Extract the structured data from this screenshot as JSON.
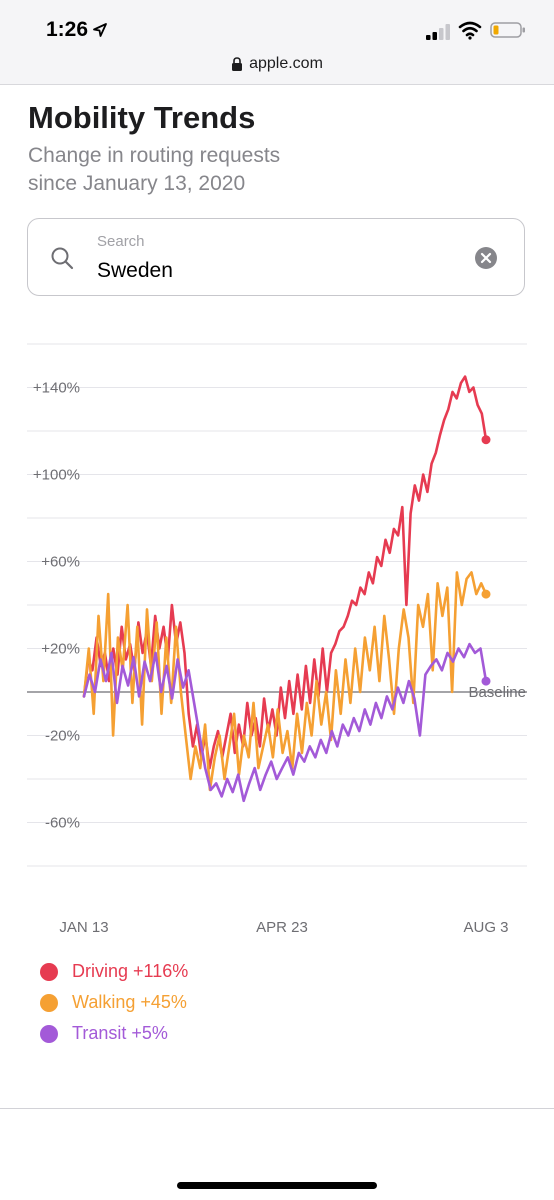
{
  "status": {
    "time": "1:26",
    "url": "apple.com"
  },
  "page": {
    "title": "Mobility Trends",
    "subtitle_line1": "Change in routing requests",
    "subtitle_line2": "since January 13, 2020"
  },
  "search": {
    "label": "Search",
    "value": "Sweden"
  },
  "chart_data": {
    "type": "line",
    "x_labels": [
      "JAN 13",
      "APR 23",
      "AUG 3"
    ],
    "y_ticks": [
      "+140%",
      "+100%",
      "+60%",
      "+20%",
      "-20%",
      "-60%"
    ],
    "ylim": [
      -80,
      160
    ],
    "baseline_label": "Baseline",
    "grid": true,
    "legend_position": "bottom-left",
    "series": [
      {
        "name": "Driving",
        "legend": "Driving +116%",
        "color": "#e63b51",
        "values": [
          -2,
          15,
          10,
          25,
          12,
          18,
          5,
          20,
          8,
          30,
          15,
          22,
          10,
          32,
          18,
          28,
          12,
          35,
          20,
          30,
          15,
          40,
          22,
          32,
          18,
          -10,
          -25,
          -15,
          -30,
          -20,
          -35,
          -25,
          -18,
          -30,
          -20,
          -10,
          -28,
          -15,
          -25,
          -5,
          -20,
          -12,
          -25,
          -3,
          -18,
          -8,
          -20,
          2,
          -12,
          5,
          -10,
          8,
          -8,
          12,
          -5,
          15,
          -2,
          20,
          0,
          18,
          22,
          28,
          30,
          35,
          42,
          40,
          48,
          45,
          55,
          50,
          62,
          58,
          70,
          64,
          75,
          72,
          85,
          40,
          82,
          95,
          88,
          100,
          92,
          105,
          110,
          118,
          125,
          130,
          138,
          135,
          142,
          145,
          138,
          140,
          132,
          128,
          116
        ]
      },
      {
        "name": "Walking",
        "legend": "Walking +45%",
        "color": "#f5a033",
        "values": [
          -2,
          20,
          -10,
          35,
          5,
          45,
          -20,
          25,
          10,
          40,
          -5,
          30,
          -15,
          38,
          5,
          32,
          -10,
          25,
          -5,
          30,
          0,
          -20,
          -40,
          -25,
          -35,
          -15,
          -45,
          -30,
          -20,
          -40,
          -25,
          -10,
          -38,
          -20,
          -30,
          -5,
          -35,
          -25,
          -15,
          -30,
          -8,
          -28,
          -18,
          -35,
          -10,
          -28,
          -5,
          -20,
          5,
          -15,
          0,
          -22,
          10,
          -10,
          15,
          -5,
          20,
          0,
          25,
          10,
          30,
          5,
          35,
          15,
          -10,
          20,
          38,
          25,
          -5,
          40,
          30,
          45,
          10,
          50,
          35,
          48,
          0,
          55,
          40,
          52,
          55,
          45,
          50,
          45
        ]
      },
      {
        "name": "Transit",
        "legend": "Transit +5%",
        "color": "#a35ad8",
        "values": [
          -2,
          8,
          0,
          15,
          5,
          18,
          -5,
          12,
          3,
          16,
          -2,
          14,
          5,
          18,
          0,
          12,
          -3,
          15,
          2,
          10,
          -5,
          -20,
          -35,
          -45,
          -42,
          -48,
          -40,
          -46,
          -38,
          -50,
          -42,
          -35,
          -45,
          -38,
          -32,
          -40,
          -35,
          -30,
          -38,
          -28,
          -32,
          -25,
          -30,
          -22,
          -28,
          -18,
          -25,
          -15,
          -20,
          -12,
          -18,
          -8,
          -15,
          -5,
          -12,
          -2,
          -8,
          2,
          -5,
          5,
          -3,
          -20,
          8,
          12,
          15,
          10,
          18,
          14,
          20,
          16,
          22,
          18,
          20,
          5
        ]
      }
    ]
  },
  "icons": {
    "location": "location-arrow-icon",
    "signal": "cellular-signal-icon",
    "wifi": "wifi-icon",
    "battery": "battery-low-icon",
    "lock": "lock-icon",
    "search": "search-icon",
    "clear": "clear-circle-icon"
  }
}
